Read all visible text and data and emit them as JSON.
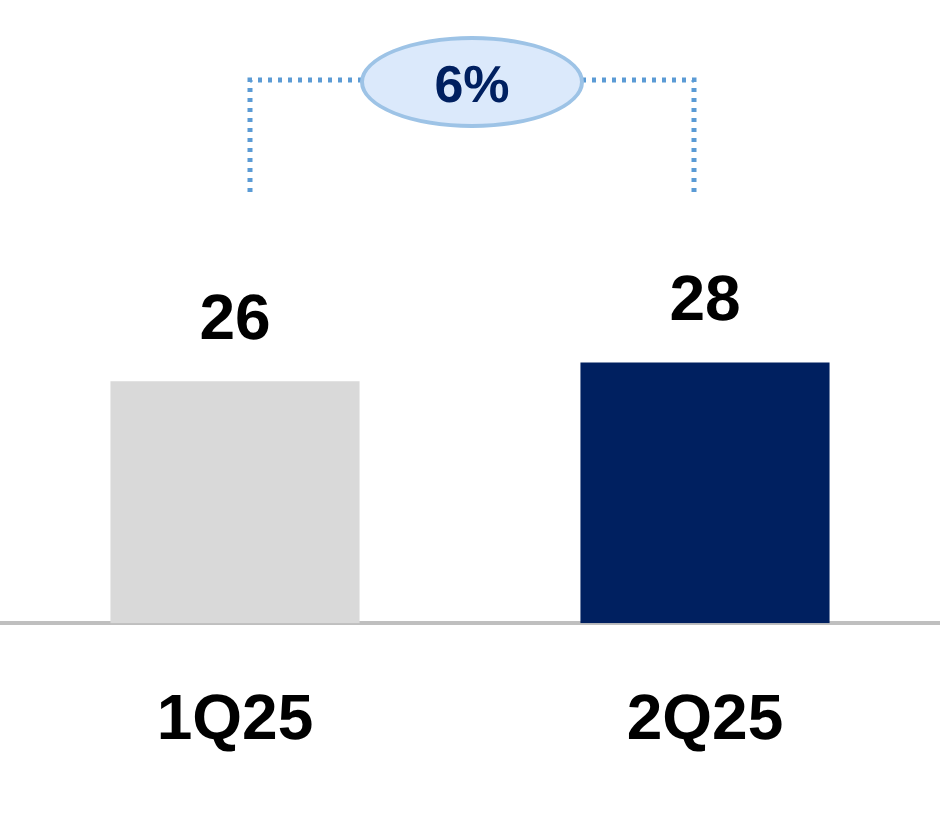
{
  "chart_data": {
    "type": "bar",
    "categories": [
      "1Q25",
      "2Q25"
    ],
    "colors": [
      "#d9d9d9",
      "#002060"
    ],
    "values": [
      26,
      28
    ],
    "tick_labels": "x",
    "grid": false,
    "legend": false,
    "data_labels": true,
    "annotations": [
      "6%"
    ]
  }
}
